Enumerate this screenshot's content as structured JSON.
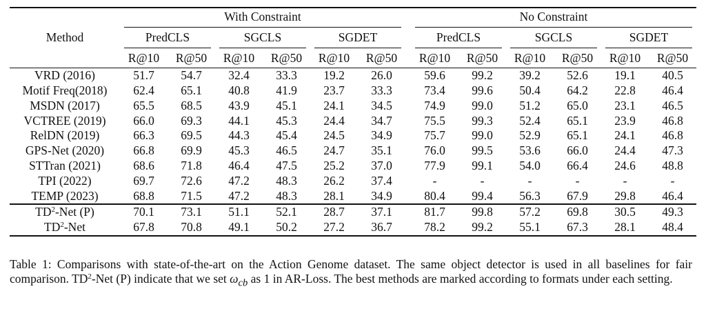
{
  "table": {
    "method_header": "Method",
    "groups": [
      "With Constraint",
      "No Constraint"
    ],
    "subgroups": [
      "PredCLS",
      "SGCLS",
      "SGDET",
      "PredCLS",
      "SGCLS",
      "SGDET"
    ],
    "metrics": [
      "R@10",
      "R@50",
      "R@10",
      "R@50",
      "R@10",
      "R@50",
      "R@10",
      "R@50",
      "R@10",
      "R@50",
      "R@10",
      "R@50"
    ],
    "rows": [
      {
        "method": "VRD (2016)",
        "values": [
          "51.7",
          "54.7",
          "32.4",
          "33.3",
          "19.2",
          "26.0",
          "59.6",
          "99.2",
          "39.2",
          "52.6",
          "19.1",
          "40.5"
        ]
      },
      {
        "method": "Motif Freq(2018)",
        "values": [
          "62.4",
          "65.1",
          "40.8",
          "41.9",
          "23.7",
          "33.3",
          "73.4",
          "99.6",
          "50.4",
          "64.2",
          "22.8",
          "46.4"
        ]
      },
      {
        "method": "MSDN (2017)",
        "values": [
          "65.5",
          "68.5",
          "43.9",
          "45.1",
          "24.1",
          "34.5",
          "74.9",
          "99.0",
          "51.2",
          "65.0",
          "23.1",
          "46.5"
        ]
      },
      {
        "method": "VCTREE (2019)",
        "values": [
          "66.0",
          "69.3",
          "44.1",
          "45.3",
          "24.4",
          "34.7",
          "75.5",
          "99.3",
          "52.4",
          "65.1",
          "23.9",
          "46.8"
        ]
      },
      {
        "method": "RelDN (2019)",
        "values": [
          "66.3",
          "69.5",
          "44.3",
          "45.4",
          "24.5",
          "34.9",
          "75.7",
          "99.0",
          "52.9",
          "65.1",
          "24.1",
          "46.8"
        ]
      },
      {
        "method": "GPS-Net (2020)",
        "values": [
          "66.8",
          "69.9",
          "45.3",
          "46.5",
          "24.7",
          "35.1",
          "76.0",
          "99.5",
          "53.6",
          "66.0",
          "24.4",
          "47.3"
        ]
      },
      {
        "method": "STTran (2021)",
        "values": [
          "68.6",
          "71.8",
          "46.4",
          "47.5",
          "25.2",
          "37.0",
          "77.9",
          "99.1",
          "54.0",
          "66.4",
          "24.6",
          "48.8"
        ]
      },
      {
        "method": "TPI (2022)",
        "values": [
          "69.7",
          "72.6",
          "47.2",
          "48.3",
          "26.2",
          "37.4",
          "-",
          "-",
          "-",
          "-",
          "-",
          "-"
        ]
      },
      {
        "method": "TEMP (2023)",
        "values": [
          "68.8",
          "71.5",
          "47.2",
          "48.3",
          "28.1",
          "34.9",
          "80.4",
          "99.4",
          "56.3",
          "67.9",
          "29.8",
          "46.4"
        ]
      }
    ],
    "ours": [
      {
        "method_base": "TD",
        "method_sup": "2",
        "method_rest": "-Net (P)",
        "values": [
          "70.1",
          "73.1",
          "51.1",
          "52.1",
          "28.7",
          "37.1",
          "81.7",
          "99.8",
          "57.2",
          "69.8",
          "30.5",
          "49.3"
        ]
      },
      {
        "method_base": "TD",
        "method_sup": "2",
        "method_rest": "-Net",
        "values": [
          "67.8",
          "70.8",
          "49.1",
          "50.2",
          "27.2",
          "36.7",
          "78.2",
          "99.2",
          "55.1",
          "67.3",
          "28.1",
          "48.4"
        ]
      }
    ],
    "bold_cells": {
      "TPI (2022)": [
        5
      ]
    }
  },
  "caption": {
    "part1": "Table 1: Comparisons with state-of-the-art on the Action Genome dataset. The same object detector is used in all baselines for fair comparison. TD",
    "sup": "2",
    "part2": "-Net (P) indicate that we set ",
    "math_base": "ω",
    "math_sub": "cb",
    "part3": " as 1 in AR-Loss. The best methods are marked according to formats under each setting."
  }
}
